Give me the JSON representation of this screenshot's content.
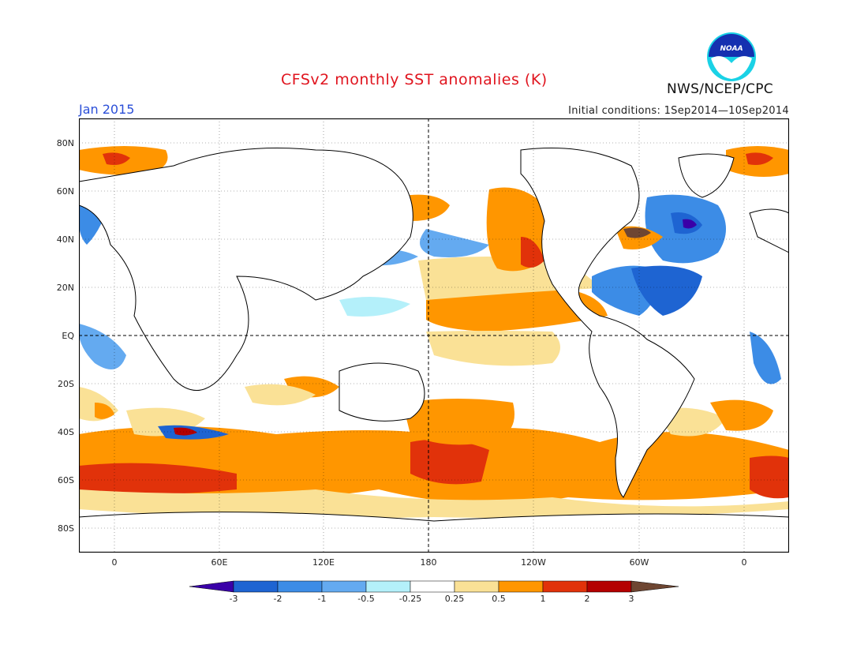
{
  "header": {
    "title": "CFSv2 monthly SST anomalies (K)",
    "month": "Jan 2015",
    "initial_conditions": "Initial conditions: 1Sep2014—10Sep2014",
    "agency": "NWS/NCEP/CPC",
    "logo_text": "NOAA"
  },
  "map": {
    "lat_labels": [
      "80N",
      "60N",
      "40N",
      "20N",
      "EQ",
      "20S",
      "40S",
      "60S",
      "80S"
    ],
    "lon_labels": [
      "0",
      "60E",
      "120E",
      "180",
      "120W",
      "60W",
      "0"
    ]
  },
  "colorbar": {
    "labels": [
      "-3",
      "-2",
      "-1",
      "-0.5",
      "-0.25",
      "0.25",
      "0.5",
      "1",
      "2",
      "3"
    ],
    "colors": [
      "#3a00a8",
      "#1e64d2",
      "#3c8ce6",
      "#64aaf0",
      "#b4f0fa",
      "#ffffff",
      "#fae196",
      "#ff9600",
      "#e1320a",
      "#b40000",
      "#6e4632"
    ]
  },
  "colors": {
    "title": "#e0141e",
    "month": "#2b4fd8"
  }
}
